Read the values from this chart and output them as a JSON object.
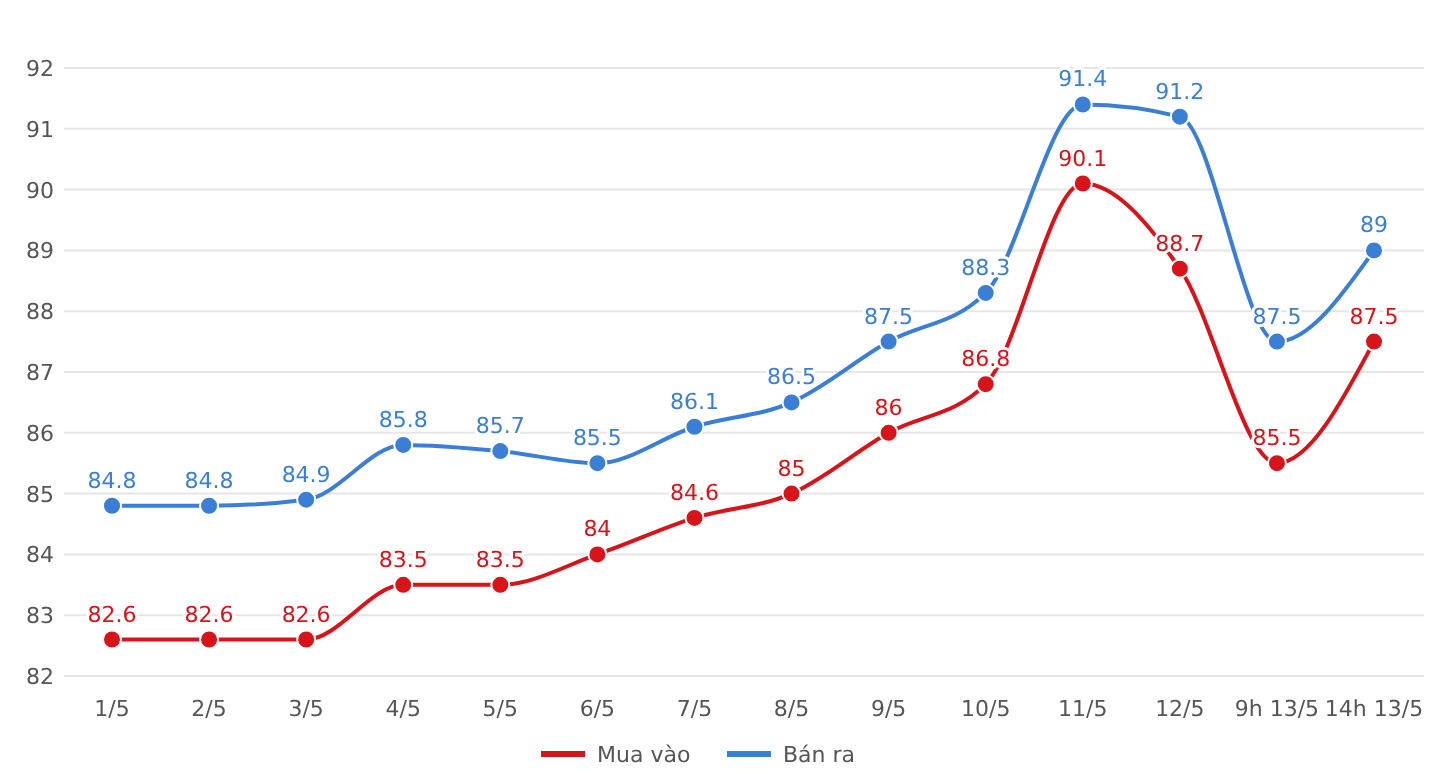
{
  "chart_data": {
    "type": "line",
    "categories": [
      "1/5",
      "2/5",
      "3/5",
      "4/5",
      "5/5",
      "6/5",
      "7/5",
      "8/5",
      "9/5",
      "10/5",
      "11/5",
      "12/5",
      "9h 13/5",
      "14h 13/5"
    ],
    "series": [
      {
        "name": "Mua vào",
        "color": "#d7141a",
        "values": [
          82.6,
          82.6,
          82.6,
          83.5,
          83.5,
          84,
          84.6,
          85,
          86,
          86.8,
          90.1,
          88.7,
          85.5,
          87.5
        ]
      },
      {
        "name": "Bán ra",
        "color": "#3a7fd5",
        "values": [
          84.8,
          84.8,
          84.9,
          85.8,
          85.7,
          85.5,
          86.1,
          86.5,
          87.5,
          88.3,
          91.4,
          91.2,
          87.5,
          89
        ]
      }
    ],
    "ylim": [
      82,
      92
    ],
    "yticks": [
      82,
      83,
      84,
      85,
      86,
      87,
      88,
      89,
      90,
      91,
      92
    ],
    "grid": "y",
    "legend": "bottom",
    "marker": "circle",
    "line_style": "solid",
    "data_labels": true
  }
}
